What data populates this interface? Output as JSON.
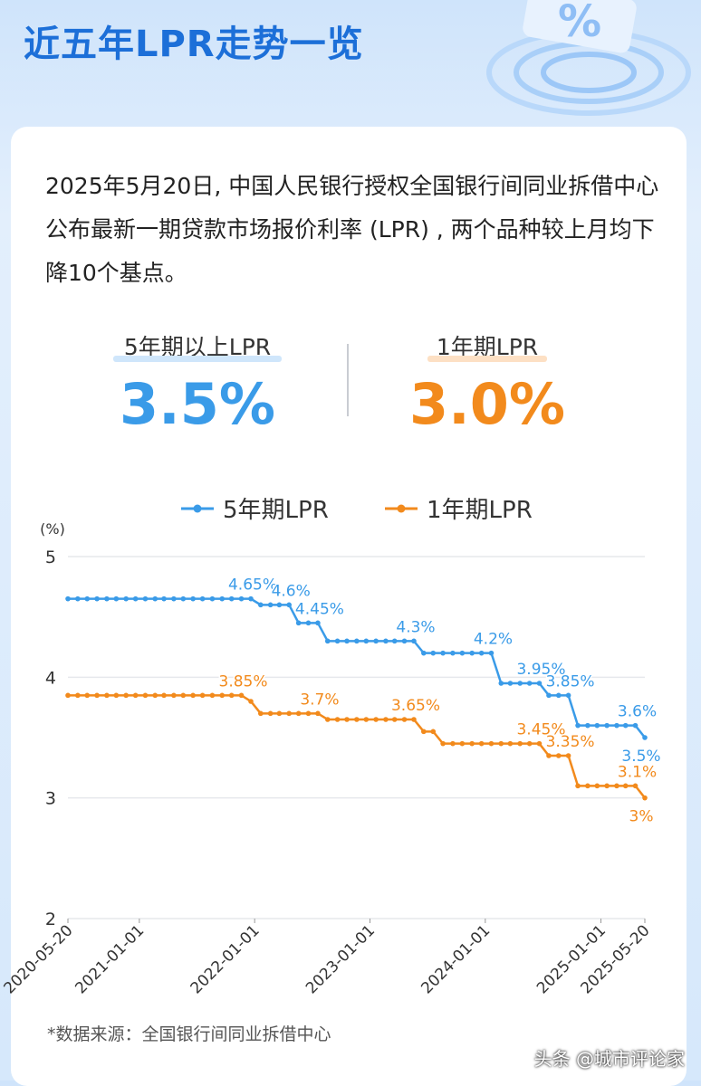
{
  "header": {
    "title": "近五年LPR走势一览"
  },
  "intro": "2025年5月20日, 中国人民银行授权全国银行间同业拆借中心公布最新一期贷款市场报价利率 (LPR) , 两个品种较上月均下降10个基点。",
  "stats": [
    {
      "label": "5年期以上LPR",
      "value": "3.5%"
    },
    {
      "label": "1年期LPR",
      "value": "3.0%"
    }
  ],
  "chart_data": {
    "type": "line",
    "y_unit": "(%)",
    "x": [
      "2020-05-20",
      "2020-06-20",
      "2020-07-20",
      "2020-08-20",
      "2020-09-20",
      "2020-10-20",
      "2020-11-20",
      "2020-12-20",
      "2021-01-20",
      "2021-02-20",
      "2021-03-20",
      "2021-04-20",
      "2021-05-20",
      "2021-06-20",
      "2021-07-20",
      "2021-08-20",
      "2021-09-20",
      "2021-10-20",
      "2021-11-20",
      "2021-12-20",
      "2022-01-20",
      "2022-02-20",
      "2022-03-20",
      "2022-04-20",
      "2022-05-20",
      "2022-06-20",
      "2022-07-20",
      "2022-08-20",
      "2022-09-20",
      "2022-10-20",
      "2022-11-20",
      "2022-12-20",
      "2023-01-20",
      "2023-02-20",
      "2023-03-20",
      "2023-04-20",
      "2023-05-20",
      "2023-06-20",
      "2023-07-20",
      "2023-08-20",
      "2023-09-20",
      "2023-10-20",
      "2023-11-20",
      "2023-12-20",
      "2024-01-20",
      "2024-02-20",
      "2024-03-20",
      "2024-04-20",
      "2024-05-20",
      "2024-06-20",
      "2024-07-20",
      "2024-08-20",
      "2024-09-20",
      "2024-10-20",
      "2024-11-20",
      "2024-12-20",
      "2025-01-20",
      "2025-02-20",
      "2025-03-20",
      "2025-04-20",
      "2025-05-20"
    ],
    "series": [
      {
        "name": "5年期LPR",
        "color": "#3a9be8",
        "values": [
          4.65,
          4.65,
          4.65,
          4.65,
          4.65,
          4.65,
          4.65,
          4.65,
          4.65,
          4.65,
          4.65,
          4.65,
          4.65,
          4.65,
          4.65,
          4.65,
          4.65,
          4.65,
          4.65,
          4.65,
          4.6,
          4.6,
          4.6,
          4.6,
          4.45,
          4.45,
          4.45,
          4.3,
          4.3,
          4.3,
          4.3,
          4.3,
          4.3,
          4.3,
          4.3,
          4.3,
          4.3,
          4.2,
          4.2,
          4.2,
          4.2,
          4.2,
          4.2,
          4.2,
          4.2,
          3.95,
          3.95,
          3.95,
          3.95,
          3.95,
          3.85,
          3.85,
          3.85,
          3.6,
          3.6,
          3.6,
          3.6,
          3.6,
          3.6,
          3.6,
          3.5
        ],
        "value_labels": [
          null,
          null,
          null,
          null,
          null,
          null,
          null,
          null,
          null,
          null,
          null,
          null,
          null,
          null,
          null,
          null,
          null,
          null,
          null,
          "4.65%",
          null,
          null,
          null,
          "4.6%",
          null,
          null,
          "4.45%",
          null,
          null,
          null,
          null,
          null,
          null,
          null,
          null,
          null,
          "4.3%",
          null,
          null,
          null,
          null,
          null,
          null,
          null,
          "4.2%",
          null,
          null,
          null,
          null,
          "3.95%",
          null,
          null,
          "3.85%",
          null,
          null,
          null,
          null,
          null,
          null,
          "3.6%",
          "3.5%"
        ]
      },
      {
        "name": "1年期LPR",
        "color": "#f28a1c",
        "values": [
          3.85,
          3.85,
          3.85,
          3.85,
          3.85,
          3.85,
          3.85,
          3.85,
          3.85,
          3.85,
          3.85,
          3.85,
          3.85,
          3.85,
          3.85,
          3.85,
          3.85,
          3.85,
          3.85,
          3.8,
          3.7,
          3.7,
          3.7,
          3.7,
          3.7,
          3.7,
          3.7,
          3.65,
          3.65,
          3.65,
          3.65,
          3.65,
          3.65,
          3.65,
          3.65,
          3.65,
          3.65,
          3.55,
          3.55,
          3.45,
          3.45,
          3.45,
          3.45,
          3.45,
          3.45,
          3.45,
          3.45,
          3.45,
          3.45,
          3.45,
          3.35,
          3.35,
          3.35,
          3.1,
          3.1,
          3.1,
          3.1,
          3.1,
          3.1,
          3.1,
          3.0
        ],
        "value_labels": [
          null,
          null,
          null,
          null,
          null,
          null,
          null,
          null,
          null,
          null,
          null,
          null,
          null,
          null,
          null,
          null,
          null,
          null,
          "3.85%",
          null,
          null,
          null,
          null,
          null,
          null,
          null,
          "3.7%",
          null,
          null,
          null,
          null,
          null,
          null,
          null,
          null,
          null,
          "3.65%",
          null,
          null,
          null,
          null,
          null,
          null,
          null,
          null,
          null,
          null,
          null,
          null,
          "3.45%",
          null,
          null,
          "3.35%",
          null,
          null,
          null,
          null,
          null,
          null,
          "3.1%",
          "3%"
        ]
      }
    ],
    "xlim": [
      "2020-05-20",
      "2025-05-20"
    ],
    "xticks": [
      "2020-05-20",
      "2021-01-01",
      "2022-01-01",
      "2023-01-01",
      "2024-01-01",
      "2025-01-01",
      "2025-05-20"
    ],
    "ylim": [
      2,
      5
    ],
    "yticks": [
      2,
      3,
      4,
      5
    ],
    "grid": true,
    "legend": "top"
  },
  "source": "*数据来源：全国银行间同业拆借中心",
  "watermark": "头条 @城市评论家"
}
